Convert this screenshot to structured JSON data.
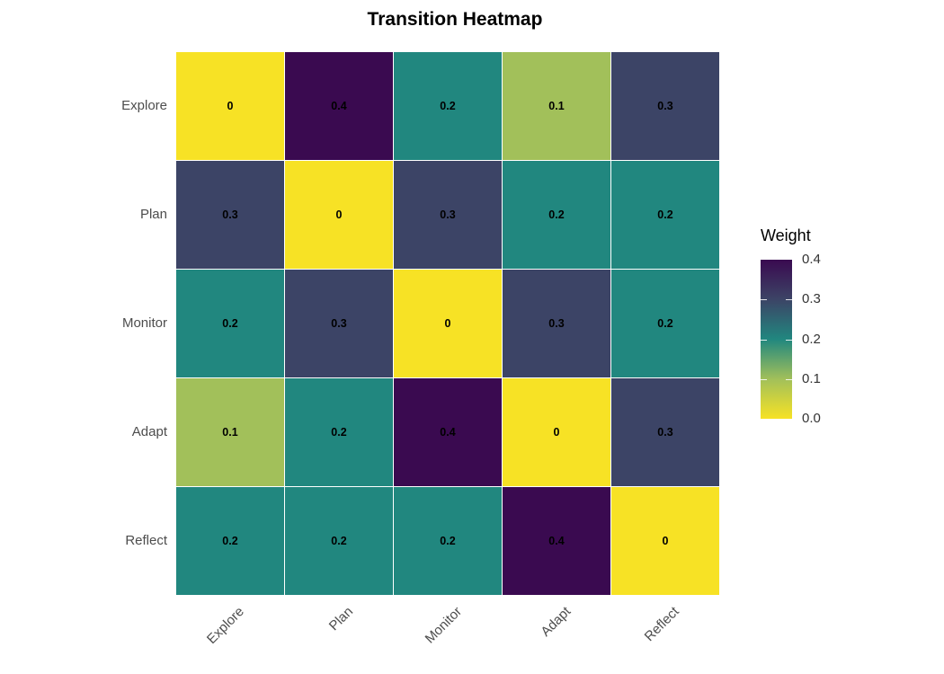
{
  "title": "Transition Heatmap",
  "chart_data": {
    "type": "heatmap",
    "title": "Transition Heatmap",
    "rows": [
      "Explore",
      "Plan",
      "Monitor",
      "Adapt",
      "Reflect"
    ],
    "columns": [
      "Explore",
      "Plan",
      "Monitor",
      "Adapt",
      "Reflect"
    ],
    "values": [
      [
        0.0,
        0.4,
        0.2,
        0.1,
        0.3
      ],
      [
        0.3,
        0.0,
        0.3,
        0.2,
        0.2
      ],
      [
        0.2,
        0.3,
        0.0,
        0.3,
        0.2
      ],
      [
        0.1,
        0.2,
        0.4,
        0.0,
        0.3
      ],
      [
        0.2,
        0.2,
        0.2,
        0.4,
        0.0
      ]
    ],
    "cell_labels": [
      [
        "0",
        "0.4",
        "0.2",
        "0.1",
        "0.3"
      ],
      [
        "0.3",
        "0",
        "0.3",
        "0.2",
        "0.2"
      ],
      [
        "0.2",
        "0.3",
        "0",
        "0.3",
        "0.2"
      ],
      [
        "0.1",
        "0.2",
        "0.4",
        "0",
        "0.3"
      ],
      [
        "0.2",
        "0.2",
        "0.2",
        "0.4",
        "0"
      ]
    ],
    "legend": {
      "title": "Weight",
      "tick_labels": [
        "0.4",
        "0.3",
        "0.2",
        "0.1",
        "0.0"
      ],
      "tick_values": [
        0.4,
        0.3,
        0.2,
        0.1,
        0.0
      ],
      "min": 0.0,
      "max": 0.4,
      "position": "right"
    },
    "colormap": {
      "name": "viridis-reversed",
      "stops": [
        {
          "value": 0.0,
          "color": "#F7E225"
        },
        {
          "value": 0.1,
          "color": "#A2C05A"
        },
        {
          "value": 0.2,
          "color": "#21877F"
        },
        {
          "value": 0.3,
          "color": "#3C4466"
        },
        {
          "value": 0.4,
          "color": "#3A0A50"
        }
      ]
    },
    "layout": {
      "grid_on": false,
      "cell_border_color": "#FFFFFF",
      "background": "#FFFFFF",
      "axis_text_color": "#4D4D4D",
      "x_tick_angle": 45
    }
  }
}
